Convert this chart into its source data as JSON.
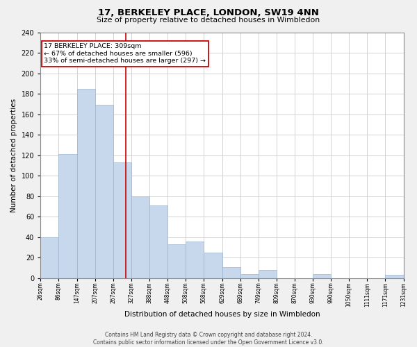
{
  "title": "17, BERKELEY PLACE, LONDON, SW19 4NN",
  "subtitle": "Size of property relative to detached houses in Wimbledon",
  "xlabel": "Distribution of detached houses by size in Wimbledon",
  "ylabel": "Number of detached properties",
  "bar_color": "#c8d8ec",
  "bar_edgecolor": "#9ab4cc",
  "vline_x": 309,
  "vline_color": "#cc0000",
  "annotation_title": "17 BERKELEY PLACE: 309sqm",
  "annotation_line1": "← 67% of detached houses are smaller (596)",
  "annotation_line2": "33% of semi-detached houses are larger (297) →",
  "annotation_box_color": "#ffffff",
  "annotation_box_edgecolor": "#cc0000",
  "bin_edges": [
    26,
    86,
    147,
    207,
    267,
    327,
    388,
    448,
    508,
    568,
    629,
    689,
    749,
    809,
    870,
    930,
    990,
    1050,
    1111,
    1171,
    1231
  ],
  "bin_heights": [
    40,
    121,
    185,
    169,
    113,
    80,
    71,
    33,
    36,
    25,
    11,
    4,
    8,
    0,
    0,
    4,
    0,
    0,
    0,
    3
  ],
  "tick_labels": [
    "26sqm",
    "86sqm",
    "147sqm",
    "207sqm",
    "267sqm",
    "327sqm",
    "388sqm",
    "448sqm",
    "508sqm",
    "568sqm",
    "629sqm",
    "689sqm",
    "749sqm",
    "809sqm",
    "870sqm",
    "930sqm",
    "990sqm",
    "1050sqm",
    "1111sqm",
    "1171sqm",
    "1231sqm"
  ],
  "ylim": [
    0,
    240
  ],
  "yticks": [
    0,
    20,
    40,
    60,
    80,
    100,
    120,
    140,
    160,
    180,
    200,
    220,
    240
  ],
  "footer_line1": "Contains HM Land Registry data © Crown copyright and database right 2024.",
  "footer_line2": "Contains public sector information licensed under the Open Government Licence v3.0.",
  "bg_color": "#f0f0f0",
  "plot_bg_color": "#ffffff"
}
